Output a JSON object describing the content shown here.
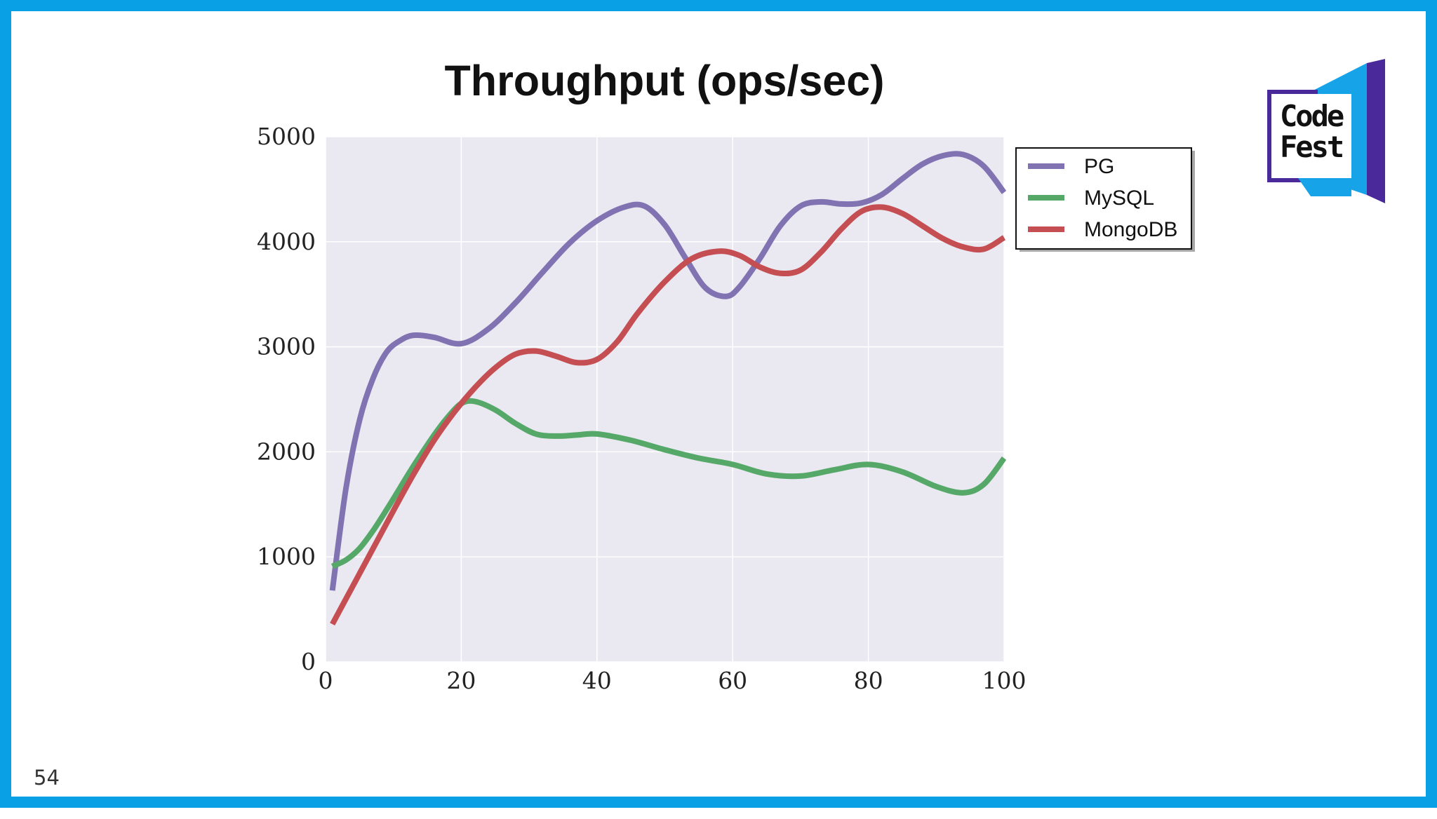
{
  "page_number": "54",
  "logo": {
    "text_line1": "Code",
    "text_line2": "Fest"
  },
  "colors": {
    "frame": "#0aa0e6",
    "plot_background": "#eae9f2",
    "gridline": "#ffffff",
    "PG": "#8172b2",
    "MySQL": "#55a868",
    "MongoDB": "#c44e52"
  },
  "chart_data": {
    "type": "line",
    "title": "Throughput (ops/sec)",
    "xlabel": "",
    "ylabel": "",
    "xlim": [
      0,
      100
    ],
    "ylim": [
      0,
      5000
    ],
    "xticks": [
      "0",
      "20",
      "40",
      "60",
      "80",
      "100"
    ],
    "yticks": [
      "0",
      "1000",
      "2000",
      "3000",
      "4000",
      "5000"
    ],
    "grid": true,
    "legend_position": "outside-right-top",
    "series": [
      {
        "name": "PG",
        "x": [
          1,
          3,
          5,
          7,
          9,
          11,
          13,
          16,
          20,
          24,
          28,
          32,
          36,
          40,
          44,
          47,
          50,
          53,
          56,
          59,
          61,
          64,
          67,
          70,
          73,
          76,
          79,
          82,
          85,
          88,
          91,
          94,
          97,
          100
        ],
        "y": [
          680,
          1650,
          2300,
          2700,
          2950,
          3060,
          3110,
          3090,
          3030,
          3170,
          3420,
          3710,
          3990,
          4200,
          4330,
          4340,
          4160,
          3850,
          3560,
          3480,
          3570,
          3840,
          4150,
          4340,
          4380,
          4360,
          4370,
          4450,
          4600,
          4740,
          4820,
          4830,
          4720,
          4470
        ]
      },
      {
        "name": "MySQL",
        "x": [
          1,
          3,
          5,
          7,
          9,
          11,
          13,
          16,
          18,
          20,
          22,
          25,
          28,
          31,
          34,
          37,
          40,
          45,
          50,
          55,
          60,
          65,
          70,
          75,
          80,
          85,
          90,
          94,
          97,
          100
        ],
        "y": [
          910,
          970,
          1080,
          1250,
          1450,
          1660,
          1870,
          2160,
          2330,
          2460,
          2480,
          2400,
          2270,
          2170,
          2150,
          2160,
          2170,
          2110,
          2020,
          1940,
          1880,
          1790,
          1770,
          1830,
          1880,
          1810,
          1670,
          1610,
          1690,
          1940
        ]
      },
      {
        "name": "MongoDB",
        "x": [
          1,
          4,
          7,
          10,
          13,
          16,
          19,
          22,
          25,
          28,
          31,
          34,
          37,
          40,
          43,
          46,
          50,
          54,
          58,
          61,
          64,
          67,
          70,
          73,
          76,
          79,
          82,
          85,
          88,
          91,
          94,
          97,
          100
        ],
        "y": [
          360,
          720,
          1080,
          1440,
          1790,
          2110,
          2380,
          2610,
          2800,
          2930,
          2960,
          2910,
          2850,
          2880,
          3050,
          3320,
          3620,
          3840,
          3910,
          3870,
          3760,
          3700,
          3730,
          3900,
          4120,
          4290,
          4330,
          4270,
          4150,
          4030,
          3950,
          3930,
          4040
        ]
      }
    ]
  }
}
